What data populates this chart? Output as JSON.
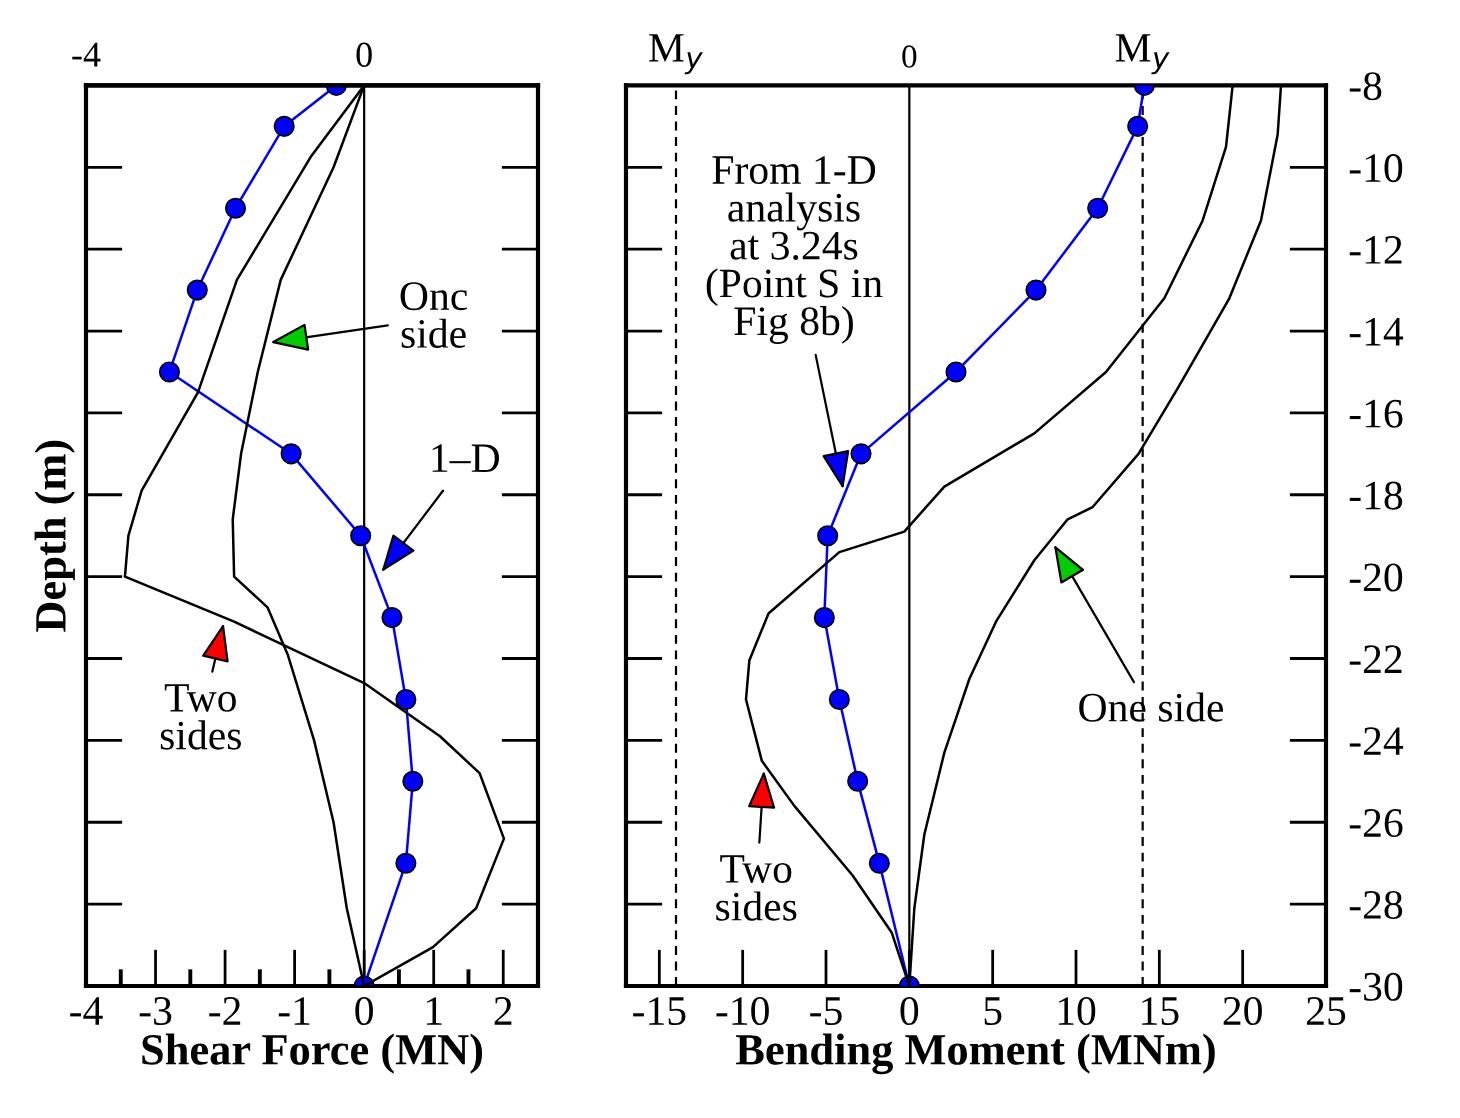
{
  "chart_data": [
    {
      "type": "line",
      "xlabel": "Shear Force (MN)",
      "ylabel": "Depth (m)",
      "xlim": [
        -4,
        2.5
      ],
      "ylim": [
        -30,
        -8
      ],
      "xticks": [
        -4,
        {
          "value": -3.5,
          "label": null
        },
        -3,
        {
          "value": -2.5,
          "label": null
        },
        -2,
        {
          "value": -1.5,
          "label": null
        },
        -1,
        {
          "value": -0.5,
          "label": null
        },
        0,
        {
          "value": 0.5,
          "label": null
        },
        1,
        {
          "value": 1.5,
          "label": null
        },
        2
      ],
      "yticks": [
        -8,
        -10,
        -12,
        -14,
        -16,
        -18,
        -20,
        -22,
        -24,
        -26,
        -28,
        -30
      ],
      "x2lim": [
        -4,
        2.5
      ],
      "x2ticks": [
        -4,
        0
      ],
      "tick_labels": "x",
      "grid": false,
      "legend": false,
      "series": [
        {
          "color": "#0000ff",
          "marker": "circle",
          "x": [
            -0.4,
            -1.15,
            -1.85,
            -2.4,
            -2.8,
            -1.05,
            -0.05,
            0.4,
            0.6,
            0.7,
            0.6,
            0
          ],
          "values": [
            -8,
            -9,
            -11,
            -13,
            -15,
            -17,
            -19,
            -21,
            -23,
            -25,
            -27,
            -30
          ]
        },
        {
          "color": "#000000",
          "marker": "none",
          "x": [
            0,
            -0.77,
            -1.83,
            -2.39,
            -3.2,
            -3.39,
            -3.44,
            -1.87,
            0,
            1.09,
            1.66,
            2.01,
            1.61,
            0.99,
            0
          ],
          "values": [
            -8,
            -9.75,
            -12.75,
            -15.5,
            -17.9,
            -19,
            -20,
            -21.1,
            -22.6,
            -23.9,
            -24.8,
            -26.4,
            -28.1,
            -29.05,
            -30
          ]
        },
        {
          "color": "#000000",
          "marker": "none",
          "x": [
            0,
            -0.44,
            -1.2,
            -1.53,
            -1.77,
            -1.89,
            -1.87,
            -1.39,
            -1.1,
            -0.72,
            -0.44,
            -0.25,
            0
          ],
          "values": [
            -8,
            -10,
            -12.75,
            -15,
            -17,
            -18.6,
            -20,
            -20.75,
            -21.9,
            -24,
            -26,
            -28.1,
            -30
          ]
        }
      ],
      "ref_lines": [
        {
          "axis": "x",
          "value": 0,
          "color": "#000000",
          "line_style": "solid"
        }
      ],
      "annotations": [
        {
          "text": "Onc\nside",
          "x": -1.43,
          "y": -14.3
        },
        {
          "text": "1–D",
          "x": 0.2,
          "y": -20
        },
        {
          "text": "Two\nsides",
          "x": -2.0,
          "y": -21
        }
      ]
    },
    {
      "type": "line",
      "xlabel": "Bending Moment (MNm)",
      "xlim": [
        -17,
        25
      ],
      "ylim": [
        -30,
        -8
      ],
      "xticks": [
        -15,
        -10,
        -5,
        0,
        5,
        10,
        15,
        20,
        25
      ],
      "yticks": [
        -8,
        -10,
        -12,
        -14,
        -16,
        -18,
        -20,
        -22,
        -24,
        -26,
        -28,
        -30
      ],
      "grid": false,
      "legend": false,
      "series": [
        {
          "color": "#0000ff",
          "marker": "circle",
          "x": [
            14.1,
            13.7,
            11.3,
            7.6,
            2.8,
            -2.9,
            -4.9,
            -5.1,
            -4.2,
            -3.1,
            -1.8,
            0
          ],
          "values": [
            -8,
            -9,
            -11,
            -13,
            -15,
            -17,
            -19,
            -21,
            -23,
            -25,
            -27,
            -30
          ]
        },
        {
          "color": "#000000",
          "marker": "none",
          "x": [
            19.4,
            19.0,
            17.6,
            15.3,
            11.8,
            7.5,
            2.1,
            -0.3,
            -4.2,
            -8.45,
            -9.6,
            -9.8,
            -8.85,
            -6.9,
            -3.4,
            -1.05,
            0
          ],
          "values": [
            -8,
            -9.5,
            -11.3,
            -13.2,
            -15,
            -16.5,
            -17.8,
            -18.9,
            -19.4,
            -20.9,
            -22.05,
            -23,
            -24.5,
            -25.6,
            -27.3,
            -28.7,
            -30
          ]
        },
        {
          "color": "#000000",
          "marker": "none",
          "x": [
            22.3,
            22.1,
            21.1,
            19.2,
            16.1,
            13.75,
            11.0,
            9.5,
            7.5,
            5.2,
            3.6,
            2.1,
            0.9,
            0.3,
            0
          ],
          "values": [
            -8,
            -9.2,
            -11.3,
            -13.2,
            -15.4,
            -17,
            -18.3,
            -18.6,
            -19.6,
            -21.1,
            -22.5,
            -24.3,
            -26.3,
            -28.1,
            -30
          ]
        }
      ],
      "ref_lines": [
        {
          "axis": "x",
          "value": 0,
          "label": "0",
          "color": "#000000",
          "line_style": "solid"
        },
        {
          "axis": "x",
          "value": -14,
          "label": "M$_{y}$",
          "color": "#000000",
          "line_style": "dashed"
        },
        {
          "axis": "x",
          "value": 14,
          "label": "M$_{y}$",
          "color": "#000000",
          "line_style": "dashed"
        }
      ],
      "annotations": [
        {
          "text": "From 1-D\nanalysis\nat 3.24s\n(Point S in\nFig 8b)",
          "x": -3.9,
          "y": -18
        },
        {
          "text": "Two\nsides",
          "x": -8.7,
          "y": -24.6
        },
        {
          "text": "One side",
          "x": 8.5,
          "y": -19.1
        }
      ]
    }
  ]
}
